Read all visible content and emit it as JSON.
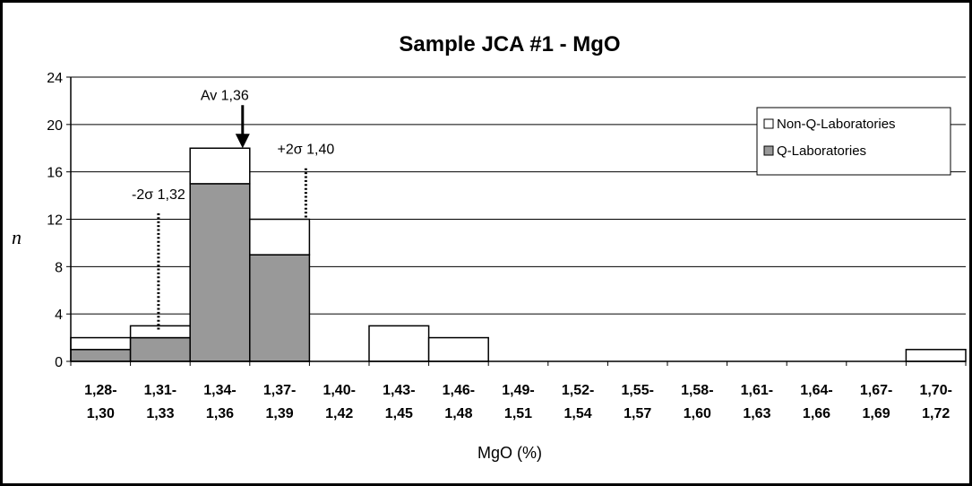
{
  "chart_data": {
    "type": "bar",
    "stacked": true,
    "title": "Sample JCA #1 - MgO",
    "xlabel": "MgO (%)",
    "ylabel": "n",
    "ylim": [
      0,
      24
    ],
    "yticks": [
      0,
      4,
      8,
      12,
      16,
      20,
      24
    ],
    "grid": true,
    "legend_position": "top-right",
    "categories": [
      [
        "1,28-",
        "1,30"
      ],
      [
        "1,31-",
        "1,33"
      ],
      [
        "1,34-",
        "1,36"
      ],
      [
        "1,37-",
        "1,39"
      ],
      [
        "1,40-",
        "1,42"
      ],
      [
        "1,43-",
        "1,45"
      ],
      [
        "1,46-",
        "1,48"
      ],
      [
        "1,49-",
        "1,51"
      ],
      [
        "1,52-",
        "1,54"
      ],
      [
        "1,55-",
        "1,57"
      ],
      [
        "1,58-",
        "1,60"
      ],
      [
        "1,61-",
        "1,63"
      ],
      [
        "1,64-",
        "1,66"
      ],
      [
        "1,67-",
        "1,69"
      ],
      [
        "1,70-",
        "1,72"
      ]
    ],
    "series": [
      {
        "name": "Q-Laboratories",
        "color": "#999999",
        "values": [
          1,
          2,
          15,
          9,
          0,
          0,
          0,
          0,
          0,
          0,
          0,
          0,
          0,
          0,
          0
        ]
      },
      {
        "name": "Non-Q-Laboratories",
        "color": "#ffffff",
        "values": [
          1,
          1,
          3,
          3,
          0,
          3,
          2,
          0,
          0,
          0,
          0,
          0,
          0,
          0,
          1
        ]
      }
    ],
    "legend_order": [
      "Non-Q-Laboratories",
      "Q-Laboratories"
    ],
    "annotations": [
      {
        "kind": "arrow",
        "label": "Av 1,36",
        "category_index": 2,
        "value": 18
      },
      {
        "kind": "dotted",
        "label": "-2σ  1,32",
        "category_index": 1,
        "value_from": 2.6,
        "value_to": 12.5
      },
      {
        "kind": "dotted",
        "label": "+2σ  1,40",
        "category_index": 3,
        "value_from": 12,
        "value_to": 16.3
      }
    ]
  }
}
